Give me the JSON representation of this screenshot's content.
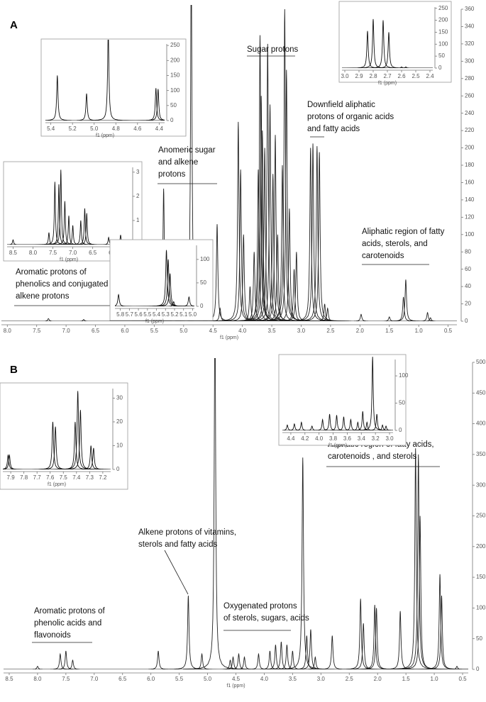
{
  "chart_data": [
    {
      "type": "spectrum",
      "panel": "A",
      "x_label": "f1 (ppm)",
      "color": "#222",
      "xlim": [
        8.1,
        0.35
      ],
      "ylim": [
        0,
        360
      ],
      "xticks": [
        {
          "value": 8,
          "label": "8.0"
        },
        7.5,
        {
          "value": 7,
          "label": "7.0"
        },
        6.5,
        {
          "value": 6,
          "label": "6.0"
        },
        5.5,
        {
          "value": 5,
          "label": "5.0"
        },
        4.5,
        {
          "value": 4,
          "label": "4.0"
        },
        3.5,
        {
          "value": 3,
          "label": "3.0"
        },
        2.5,
        {
          "value": 2,
          "label": "2.0"
        },
        1.5,
        {
          "value": 1,
          "label": "1.0"
        },
        0.5
      ],
      "yticks": [
        0,
        20,
        40,
        60,
        80,
        100,
        120,
        140,
        160,
        180,
        200,
        220,
        240,
        260,
        280,
        300,
        320,
        340,
        360
      ],
      "x": [
        7.3,
        6.7,
        5.34,
        5.07,
        4.87,
        4.43,
        4.38,
        4.07,
        4.03,
        3.98,
        3.87,
        3.8,
        3.73,
        3.7,
        3.68,
        3.66,
        3.62,
        3.57,
        3.53,
        3.48,
        3.44,
        3.4,
        3.32,
        3.28,
        3.25,
        3.2,
        3.12,
        3.08,
        2.84,
        2.8,
        2.73,
        2.69,
        2.6,
        2.55,
        1.98,
        1.5,
        1.26,
        1.22,
        0.85,
        0.8
      ],
      "values": [
        3,
        2,
        153,
        93,
        420,
        112,
        15,
        230,
        175,
        100,
        40,
        80,
        175,
        330,
        260,
        220,
        200,
        320,
        250,
        170,
        215,
        100,
        180,
        360,
        290,
        130,
        60,
        80,
        200,
        205,
        202,
        195,
        20,
        15,
        8,
        5,
        28,
        48,
        10,
        4
      ],
      "annotations": [
        [
          "Sugar protons"
        ],
        [
          "Downfield aliphatic",
          "protons of organic acids",
          "and fatty acids"
        ],
        [
          "Anomeric sugar",
          "and alkene",
          "protons"
        ],
        [
          "Aliphatic region of fatty",
          "acids, sterols, and",
          "carotenoids"
        ],
        [
          "Aromatic protons of",
          "phenolics and conjugated",
          "alkene protons"
        ]
      ]
    },
    {
      "type": "spectrum",
      "x_label": "f1 (ppm)",
      "color": "#111",
      "xlim": [
        5.45,
        4.35
      ],
      "ylim": [
        0,
        255
      ],
      "xticks": [
        5.4,
        5.2,
        {
          "value": 5,
          "label": "5.0"
        },
        4.8,
        4.6,
        4.4
      ],
      "yticks": [
        0,
        50,
        100,
        150,
        200,
        250
      ],
      "x": [
        5.34,
        5.07,
        4.87,
        4.43,
        4.41
      ],
      "values": [
        150,
        90,
        300,
        108,
        105
      ]
    },
    {
      "type": "spectrum",
      "x_label": "f1 (ppm)",
      "color": "#111",
      "xlim": [
        8.65,
        5.55
      ],
      "ylim": [
        0,
        3.2
      ],
      "xticks": [
        8.5,
        {
          "value": 8,
          "label": "8.0"
        },
        7.5,
        {
          "value": 7,
          "label": "7.0"
        },
        6.5,
        {
          "value": 6,
          "label": "6.0"
        }
      ],
      "yticks": [
        0,
        1,
        2,
        3
      ],
      "x": [
        8.5,
        7.6,
        7.45,
        7.35,
        7.3,
        7.2,
        7.1,
        7.0,
        6.8,
        6.7,
        6.65,
        6.1,
        5.8
      ],
      "values": [
        0.2,
        0.5,
        2.6,
        2.5,
        3.1,
        1.8,
        1.2,
        0.8,
        1.0,
        1.5,
        1.3,
        0.3,
        0.4
      ]
    },
    {
      "type": "spectrum",
      "x_label": "f1 (ppm)",
      "color": "#111",
      "xlim": [
        3.02,
        2.38
      ],
      "ylim": [
        0,
        255
      ],
      "xticks": [
        {
          "value": 3,
          "label": "3.0"
        },
        2.9,
        2.8,
        2.7,
        2.6,
        2.5,
        2.4
      ],
      "yticks": [
        0,
        50,
        100,
        150,
        200,
        250
      ],
      "x": [
        2.84,
        2.8,
        2.73,
        2.69,
        2.6,
        2.57
      ],
      "values": [
        155,
        205,
        200,
        150,
        5,
        5
      ]
    },
    {
      "type": "spectrum",
      "panel": "B",
      "x_label": "f1 (ppm)",
      "color": "#222",
      "xlim": [
        8.6,
        0.4
      ],
      "ylim": [
        0,
        500
      ],
      "xticks": [
        8.5,
        {
          "value": 8,
          "label": "8.0"
        },
        7.5,
        {
          "value": 7,
          "label": "7.0"
        },
        6.5,
        {
          "value": 6,
          "label": "6.0"
        },
        5.5,
        {
          "value": 5,
          "label": "5.0"
        },
        4.5,
        {
          "value": 4,
          "label": "4.0"
        },
        3.5,
        {
          "value": 3,
          "label": "3.0"
        },
        2.5,
        {
          "value": 2,
          "label": "2.0"
        },
        1.5,
        {
          "value": 1,
          "label": "1.0"
        },
        0.5
      ],
      "yticks": [
        0,
        50,
        100,
        150,
        200,
        250,
        300,
        350,
        400,
        450,
        500
      ],
      "x": [
        8.0,
        7.6,
        7.5,
        7.38,
        5.87,
        5.34,
        5.1,
        4.87,
        4.6,
        4.55,
        4.45,
        4.35,
        4.1,
        3.9,
        3.8,
        3.7,
        3.6,
        3.5,
        3.32,
        3.25,
        3.18,
        3.1,
        2.8,
        2.3,
        2.25,
        2.05,
        2.02,
        1.6,
        1.33,
        1.28,
        1.25,
        0.9,
        0.87,
        0.6
      ],
      "values": [
        5,
        25,
        30,
        15,
        30,
        120,
        25,
        600,
        15,
        20,
        25,
        20,
        25,
        30,
        40,
        45,
        40,
        30,
        345,
        55,
        65,
        20,
        55,
        115,
        75,
        105,
        100,
        95,
        360,
        350,
        250,
        155,
        120,
        5
      ],
      "annotations": [
        [
          "Aliphatic region of fatty acids,",
          "carotenoids , and sterols"
        ],
        [
          "Alkene protons of vitamins,",
          "sterols and fatty acids"
        ],
        [
          "Aromatic protons of",
          "phenolic acids and",
          "flavonoids"
        ],
        [
          "Oxygenated protons",
          "of sterols, sugars, acids"
        ]
      ]
    },
    {
      "type": "spectrum",
      "x_label": "f1 (ppm)",
      "color": "#111",
      "xlim": [
        7.96,
        7.14
      ],
      "ylim": [
        0,
        34
      ],
      "xticks": [
        7.9,
        7.8,
        7.7,
        7.6,
        7.5,
        7.4,
        7.3,
        7.2
      ],
      "yticks": [
        0,
        10,
        20,
        30
      ],
      "x": [
        7.92,
        7.91,
        7.58,
        7.56,
        7.41,
        7.39,
        7.37,
        7.29,
        7.27
      ],
      "values": [
        6,
        6,
        20,
        18,
        20,
        33,
        25,
        10,
        9
      ]
    },
    {
      "type": "spectrum",
      "x_label": "f1 (ppm)",
      "color": "#111",
      "xlim": [
        5.86,
        4.98
      ],
      "ylim": [
        0,
        130
      ],
      "xticks": [
        5.8,
        5.7,
        5.6,
        5.5,
        5.4,
        5.3,
        5.2,
        5.1,
        {
          "value": 5,
          "label": "5.0"
        }
      ],
      "yticks": [
        0,
        50,
        100
      ],
      "x": [
        5.82,
        5.29,
        5.27,
        5.25,
        5.21,
        5.04
      ],
      "values": [
        25,
        120,
        100,
        70,
        10,
        20
      ]
    },
    {
      "type": "spectrum",
      "x_label": "f1 (ppm)",
      "color": "#111",
      "xlim": [
        4.52,
        2.95
      ],
      "ylim": [
        0,
        130
      ],
      "xticks": [
        4.4,
        4.2,
        {
          "value": 4,
          "label": "4.0"
        },
        3.8,
        3.6,
        3.4,
        3.2,
        {
          "value": 3,
          "label": "3.0"
        }
      ],
      "yticks": [
        0,
        50,
        100
      ],
      "x": [
        4.45,
        4.35,
        4.25,
        4.1,
        3.95,
        3.85,
        3.75,
        3.65,
        3.55,
        3.45,
        3.38,
        3.32,
        3.24,
        3.18,
        3.1,
        3.05
      ],
      "values": [
        10,
        12,
        15,
        8,
        20,
        30,
        28,
        25,
        20,
        15,
        35,
        15,
        135,
        30,
        10,
        8
      ]
    }
  ]
}
